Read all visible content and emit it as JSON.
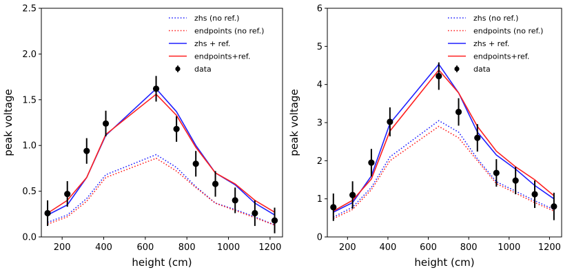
{
  "colors": {
    "blue": "#1f1fff",
    "red": "#ff1f1f",
    "data": "#000000"
  },
  "chart_data": [
    {
      "type": "line",
      "xlabel": "height (cm)",
      "ylabel": "peak voltage",
      "xlim": [
        100,
        1260
      ],
      "ylim": [
        0,
        2.5
      ],
      "xticks": [
        200,
        400,
        600,
        800,
        1000,
        1200
      ],
      "yticks": [
        0.0,
        0.5,
        1.0,
        1.5,
        2.0,
        2.5
      ],
      "ytick_labels": [
        "0.0",
        "0.5",
        "1.0",
        "1.5",
        "2.0",
        "2.5"
      ],
      "legend_position": "top-right",
      "x": [
        130,
        225,
        318,
        410,
        652,
        750,
        843,
        937,
        1032,
        1127,
        1222
      ],
      "series": [
        {
          "name": "zhs (no ref.)",
          "style": "dotted",
          "color": "blue",
          "values": [
            0.16,
            0.24,
            0.42,
            0.68,
            0.9,
            0.76,
            0.55,
            0.37,
            0.3,
            0.22,
            0.13
          ]
        },
        {
          "name": "endpoints (no ref.)",
          "style": "dotted",
          "color": "red",
          "values": [
            0.14,
            0.22,
            0.39,
            0.65,
            0.86,
            0.72,
            0.54,
            0.37,
            0.29,
            0.21,
            0.13
          ]
        },
        {
          "name": "zhs + ref.",
          "style": "solid",
          "color": "blue",
          "values": [
            0.24,
            0.35,
            0.65,
            1.11,
            1.62,
            1.37,
            1.0,
            0.7,
            0.57,
            0.37,
            0.24
          ]
        },
        {
          "name": "endpoints+ref.",
          "style": "solid",
          "color": "red",
          "values": [
            0.26,
            0.4,
            0.65,
            1.12,
            1.56,
            1.33,
            0.98,
            0.7,
            0.58,
            0.4,
            0.27
          ]
        }
      ],
      "data_points": {
        "name": "data",
        "y": [
          0.26,
          0.47,
          0.94,
          1.24,
          1.62,
          1.18,
          0.8,
          0.58,
          0.4,
          0.26,
          0.18
        ],
        "err": [
          0.14,
          0.14,
          0.14,
          0.14,
          0.14,
          0.14,
          0.14,
          0.14,
          0.14,
          0.14,
          0.14
        ]
      }
    },
    {
      "type": "line",
      "xlabel": "height (cm)",
      "ylabel": "peak voltage",
      "xlim": [
        100,
        1260
      ],
      "ylim": [
        0,
        6
      ],
      "xticks": [
        200,
        400,
        600,
        800,
        1000,
        1200
      ],
      "yticks": [
        0,
        1,
        2,
        3,
        4,
        5,
        6
      ],
      "ytick_labels": [
        "0",
        "1",
        "2",
        "3",
        "4",
        "5",
        "6"
      ],
      "legend_position": "top-right",
      "x": [
        130,
        225,
        318,
        410,
        652,
        750,
        843,
        937,
        1032,
        1127,
        1222
      ],
      "series": [
        {
          "name": "zhs (no ref.)",
          "style": "dotted",
          "color": "blue",
          "values": [
            0.52,
            0.78,
            1.3,
            2.1,
            3.05,
            2.75,
            2.05,
            1.45,
            1.2,
            0.95,
            0.72
          ]
        },
        {
          "name": "endpoints (no ref.)",
          "style": "dotted",
          "color": "red",
          "values": [
            0.48,
            0.72,
            1.24,
            2.0,
            2.9,
            2.6,
            2.0,
            1.4,
            1.15,
            0.9,
            0.68
          ]
        },
        {
          "name": "zhs + ref.",
          "style": "solid",
          "color": "blue",
          "values": [
            0.65,
            0.9,
            1.6,
            2.98,
            4.53,
            3.78,
            2.75,
            2.15,
            1.78,
            1.35,
            1.0
          ]
        },
        {
          "name": "endpoints+ref.",
          "style": "solid",
          "color": "red",
          "values": [
            0.68,
            0.96,
            1.52,
            2.78,
            4.38,
            3.78,
            2.9,
            2.25,
            1.84,
            1.5,
            1.08
          ]
        }
      ],
      "data_points": {
        "name": "data",
        "y": [
          0.78,
          1.1,
          1.95,
          3.02,
          4.22,
          3.28,
          2.6,
          1.68,
          1.48,
          1.12,
          0.8
        ],
        "err": [
          0.36,
          0.36,
          0.36,
          0.38,
          0.36,
          0.36,
          0.36,
          0.36,
          0.36,
          0.36,
          0.36
        ]
      }
    }
  ]
}
